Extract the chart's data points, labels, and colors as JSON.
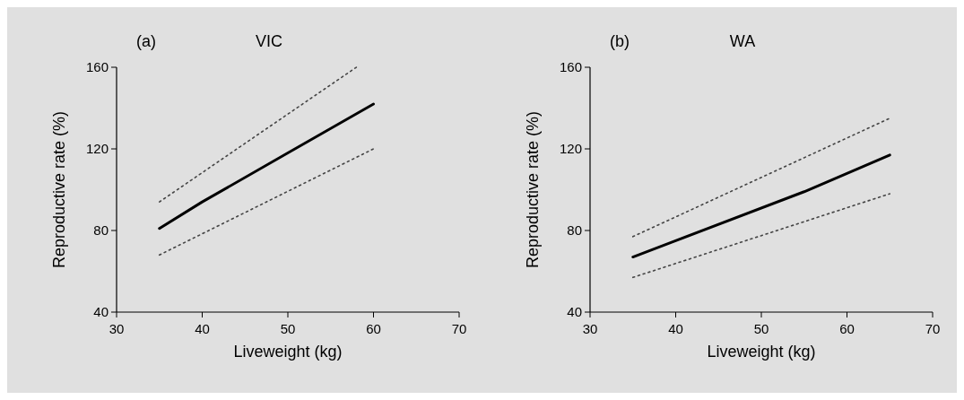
{
  "chart_data": [
    {
      "type": "line",
      "title": "VIC",
      "annotations": [
        "(a)"
      ],
      "xlabel": "Liveweight (kg)",
      "ylabel": "Reproductive rate (%)",
      "xlim": [
        30,
        70
      ],
      "xticks": [
        30,
        40,
        50,
        60,
        70
      ],
      "ylim": [
        40,
        160
      ],
      "yticks": [
        40,
        80,
        120,
        160
      ],
      "grid": false,
      "series": [
        {
          "color": "#000000",
          "line_style": "solid",
          "x": [
            35,
            40,
            50,
            55,
            60
          ],
          "values": [
            81,
            94,
            118,
            130,
            142
          ]
        },
        {
          "color": "#444444",
          "line_style": "dotted",
          "x": [
            35,
            58
          ],
          "values": [
            94,
            160
          ]
        },
        {
          "color": "#444444",
          "line_style": "dotted",
          "x": [
            35,
            60
          ],
          "values": [
            68,
            120
          ]
        }
      ]
    },
    {
      "type": "line",
      "title": "WA",
      "annotations": [
        "(b)"
      ],
      "xlabel": "Liveweight (kg)",
      "ylabel": "Reproductive rate (%)",
      "xlim": [
        30,
        70
      ],
      "xticks": [
        30,
        40,
        50,
        60,
        70
      ],
      "ylim": [
        40,
        160
      ],
      "yticks": [
        40,
        80,
        120,
        160
      ],
      "grid": false,
      "series": [
        {
          "color": "#000000",
          "line_style": "solid",
          "x": [
            35,
            40,
            55,
            65
          ],
          "values": [
            67,
            75,
            99,
            117
          ]
        },
        {
          "color": "#444444",
          "line_style": "dotted",
          "x": [
            35,
            65
          ],
          "values": [
            77,
            135
          ]
        },
        {
          "color": "#444444",
          "line_style": "dotted",
          "x": [
            35,
            65
          ],
          "values": [
            57,
            98
          ]
        }
      ]
    }
  ]
}
